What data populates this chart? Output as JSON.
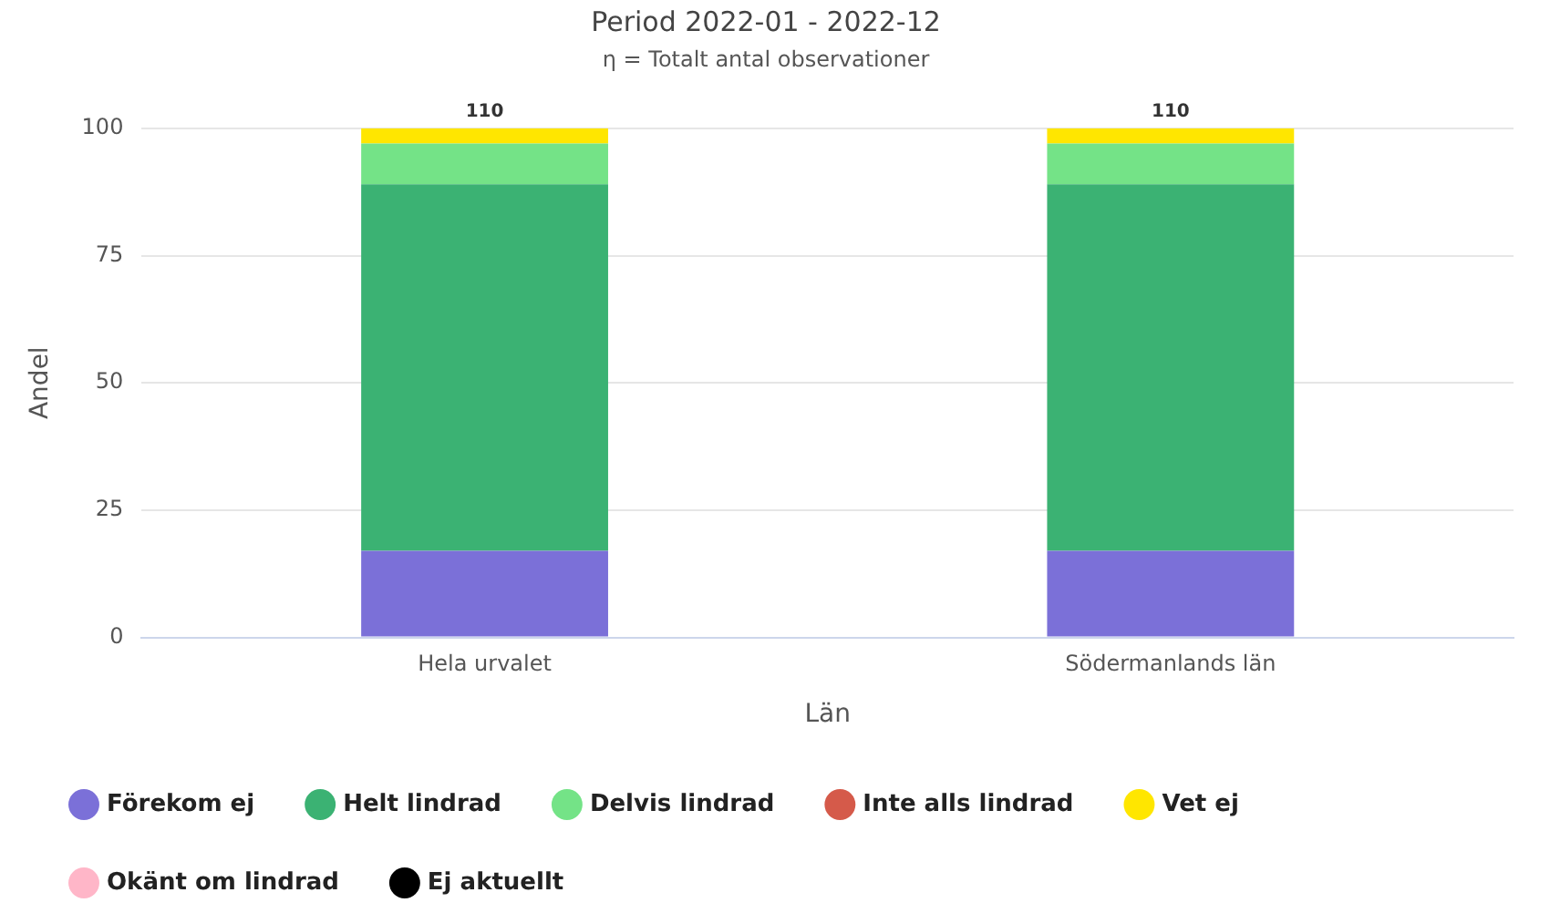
{
  "chart_data": {
    "type": "bar",
    "title": "Period 2022-01 - 2022-12",
    "subtitle": "η = Totalt antal observationer",
    "xlabel": "Län",
    "ylabel": "Andel",
    "categories": [
      "Hela urvalet",
      "Södermanlands län"
    ],
    "stacked": true,
    "ylim": [
      0,
      100
    ],
    "yticks": [
      0,
      25,
      50,
      75,
      100
    ],
    "grid": "y",
    "legend": "bottom",
    "marker": "circle",
    "annotations": [
      {
        "text": "110",
        "x": "Hela urvalet",
        "y": 100
      },
      {
        "text": "110",
        "x": "Södermanlands län",
        "y": 100
      }
    ],
    "series": [
      {
        "name": "Förekom ej",
        "color": "#7b70d8",
        "values": [
          17,
          17
        ]
      },
      {
        "name": "Helt lindrad",
        "color": "#3bb273",
        "values": [
          72,
          72
        ]
      },
      {
        "name": "Delvis lindrad",
        "color": "#74e387",
        "values": [
          8,
          8
        ]
      },
      {
        "name": "Inte alls lindrad",
        "color": "#d55a4a",
        "values": [
          0,
          0
        ]
      },
      {
        "name": "Vet ej",
        "color": "#ffe600",
        "values": [
          3,
          3
        ]
      },
      {
        "name": "Okänt om lindrad",
        "color": "#ffb6c8",
        "values": [
          0,
          0
        ]
      },
      {
        "name": "Ej aktuellt",
        "color": "#000000",
        "values": [
          0,
          0
        ]
      }
    ]
  }
}
